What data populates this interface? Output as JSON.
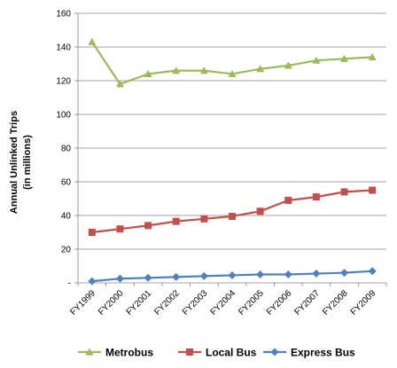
{
  "chart_data": {
    "type": "line",
    "title": "",
    "xlabel": "",
    "ylabel": [
      "Annual Unlinked Trips",
      "(in millions)"
    ],
    "ylim": [
      0,
      160
    ],
    "yticks": [
      {
        "value": 0,
        "label": "-"
      },
      {
        "value": 20,
        "label": "20"
      },
      {
        "value": 40,
        "label": "40"
      },
      {
        "value": 60,
        "label": "60"
      },
      {
        "value": 80,
        "label": "80"
      },
      {
        "value": 100,
        "label": "100"
      },
      {
        "value": 120,
        "label": "120"
      },
      {
        "value": 140,
        "label": "140"
      },
      {
        "value": 160,
        "label": "160"
      }
    ],
    "grid": "horizontal",
    "legend_position": "bottom",
    "categories": [
      "FY1999",
      "FY2000",
      "FY2001",
      "FY2002",
      "FY2003",
      "FY2004",
      "FY2005",
      "FY2006",
      "FY2007",
      "FY2008",
      "FY2009"
    ],
    "series": [
      {
        "name": "Metrobus",
        "color": "#9bbb59",
        "line_color": "#9bbb59",
        "marker": "triangle",
        "values": [
          143,
          118,
          124,
          126,
          126,
          124,
          127,
          129,
          132,
          133,
          134
        ]
      },
      {
        "name": "Local Bus",
        "color": "#c0504d",
        "line_color": "#c0504d",
        "marker": "square",
        "values": [
          30,
          32,
          34,
          36.5,
          38,
          39.5,
          42.5,
          49,
          51,
          54,
          55
        ]
      },
      {
        "name": "Express Bus",
        "color": "#4f81bd",
        "line_color": "#4f81bd",
        "marker": "diamond",
        "values": [
          1,
          2.5,
          3,
          3.5,
          4,
          4.5,
          5,
          5,
          5.5,
          6,
          7
        ]
      }
    ]
  }
}
